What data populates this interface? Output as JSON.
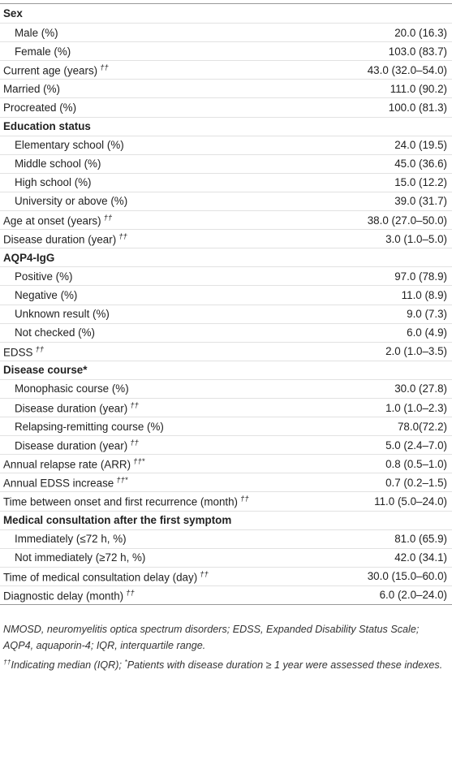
{
  "table": {
    "items": [
      {
        "heading": "Sex",
        "rows": [
          {
            "label": "Male (%)",
            "value": "20.0 (16.3)"
          },
          {
            "label": "Female (%)",
            "value": "103.0 (83.7)"
          }
        ]
      },
      {
        "label": "Current age (years)",
        "sup": "††",
        "value": "43.0 (32.0–54.0)"
      },
      {
        "label": "Married (%)",
        "value": "111.0 (90.2)"
      },
      {
        "label": "Procreated (%)",
        "value": "100.0 (81.3)"
      },
      {
        "heading": "Education status",
        "rows": [
          {
            "label": "Elementary school (%)",
            "value": "24.0 (19.5)"
          },
          {
            "label": "Middle school (%)",
            "value": "45.0 (36.6)"
          },
          {
            "label": "High school (%)",
            "value": "15.0 (12.2)"
          },
          {
            "label": "University or above (%)",
            "value": "39.0 (31.7)"
          }
        ]
      },
      {
        "label": "Age at onset (years)",
        "sup": "††",
        "value": "38.0 (27.0–50.0)"
      },
      {
        "label": "Disease duration (year)",
        "sup": "††",
        "value": "3.0 (1.0–5.0)"
      },
      {
        "heading": "AQP4-IgG",
        "rows": [
          {
            "label": "Positive (%)",
            "value": "97.0 (78.9)"
          },
          {
            "label": "Negative (%)",
            "value": "11.0 (8.9)"
          },
          {
            "label": "Unknown result (%)",
            "value": "9.0 (7.3)"
          },
          {
            "label": "Not checked (%)",
            "value": "6.0 (4.9)"
          }
        ]
      },
      {
        "label": "EDSS",
        "sup": "††",
        "value": "2.0 (1.0–3.5)"
      },
      {
        "heading": "Disease course*",
        "rows": [
          {
            "label": "Monophasic course (%)",
            "value": "30.0 (27.8)"
          },
          {
            "label": "Disease duration (year)",
            "sup": "††",
            "value": "1.0 (1.0–2.3)"
          },
          {
            "label": "Relapsing-remitting course (%)",
            "value": "78.0(72.2)"
          },
          {
            "label": "Disease duration (year)",
            "sup": "††",
            "value": "5.0 (2.4–7.0)"
          }
        ]
      },
      {
        "label": "Annual relapse rate (ARR)",
        "sup": "††*",
        "value": "0.8 (0.5–1.0)"
      },
      {
        "label": "Annual EDSS increase",
        "sup": "††*",
        "value": "0.7 (0.2–1.5)"
      },
      {
        "label": "Time between onset and first recurrence (month)",
        "sup": "††",
        "value": "11.0 (5.0–24.0)"
      },
      {
        "heading": "Medical consultation after the first symptom",
        "rows": [
          {
            "label": "Immediately (≤72 h, %)",
            "value": "81.0 (65.9)"
          },
          {
            "label": "Not immediately (≥72 h, %)",
            "value": "42.0 (34.1)"
          }
        ]
      },
      {
        "label": "Time of medical consultation delay (day)",
        "sup": "††",
        "value": "30.0 (15.0–60.0)"
      },
      {
        "label": "Diagnostic delay (month)",
        "sup": "††",
        "value": "6.0 (2.0–24.0)"
      }
    ],
    "footnotes": {
      "abbreviations": "NMOSD, neuromyelitis optica spectrum disorders; EDSS, Expanded Disability Status Scale; AQP4, aquaporin-4; IQR, interquartile range.",
      "notes": [
        {
          "sup": "††",
          "text": "Indicating median (IQR); "
        },
        {
          "sup": "*",
          "text": "Patients with disease duration ≥ 1 year were assessed these indexes."
        }
      ]
    }
  }
}
